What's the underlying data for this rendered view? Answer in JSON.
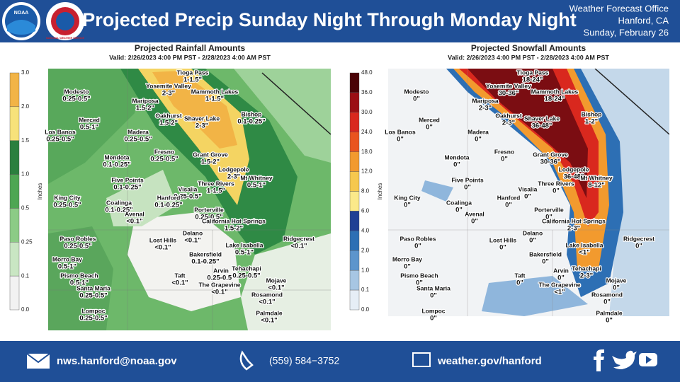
{
  "header": {
    "title": "Projected Precip Sunday Night Through Monday Night",
    "office": [
      "Weather Forecast Office",
      "Hanford, CA",
      "Sunday, February 26"
    ],
    "logos": [
      "NOAA",
      "NATIONAL WEATHER SERVICE"
    ]
  },
  "maps": [
    {
      "title": "Projected Rainfall Amounts",
      "valid": "Valid: 2/26/2023 4:00 PM PST - 2/28/2023 4:00 AM PST",
      "unit": "Inches",
      "scale": [
        "3.0",
        "2.0",
        "1.5",
        "1.0",
        "0.5",
        "0.25",
        "0.1",
        "0.0"
      ],
      "places": [
        {
          "name": "Tioga Pass",
          "amount": "1-1.5\""
        },
        {
          "name": "Yosemite Valley",
          "amount": "2-3\""
        },
        {
          "name": "Mammoth Lakes",
          "amount": "1-1.5\""
        },
        {
          "name": "Modesto",
          "amount": "0.25-0.5\""
        },
        {
          "name": "Mariposa",
          "amount": "1.5-2\""
        },
        {
          "name": "Bishop",
          "amount": "0.1-0.25\""
        },
        {
          "name": "Oakhurst",
          "amount": "1.5-2\""
        },
        {
          "name": "Shaver Lake",
          "amount": "2-3\""
        },
        {
          "name": "Merced",
          "amount": "0.5-1\""
        },
        {
          "name": "Los Banos",
          "amount": "0.25-0.5\""
        },
        {
          "name": "Madera",
          "amount": "0.25-0.5\""
        },
        {
          "name": "Grant Grove",
          "amount": "1.5-2\""
        },
        {
          "name": "Fresno",
          "amount": "0.25-0.5\""
        },
        {
          "name": "Mendota",
          "amount": "0.1-0.25\""
        },
        {
          "name": "Lodgepole",
          "amount": "2-3\""
        },
        {
          "name": "Mt Whitney",
          "amount": "0.5-1\""
        },
        {
          "name": "Five Points",
          "amount": "0.1-0.25\""
        },
        {
          "name": "Three Rivers",
          "amount": "1-1.5\""
        },
        {
          "name": "Visalia",
          "amount": "0.25-0.5\""
        },
        {
          "name": "Hanford",
          "amount": "0.1-0.25\""
        },
        {
          "name": "King City",
          "amount": "0.25-0.5\""
        },
        {
          "name": "Coalinga",
          "amount": "0.1-0.25\""
        },
        {
          "name": "Avenal",
          "amount": "<0.1\""
        },
        {
          "name": "Porterville",
          "amount": "0.25-0.5\""
        },
        {
          "name": "California Hot Springs",
          "amount": "1.5-2\""
        },
        {
          "name": "Lost Hills",
          "amount": "<0.1\""
        },
        {
          "name": "Delano",
          "amount": "<0.1\""
        },
        {
          "name": "Paso Robles",
          "amount": "0.25-0.5\""
        },
        {
          "name": "Lake Isabella",
          "amount": "0.5-1\""
        },
        {
          "name": "Ridgecrest",
          "amount": "<0.1\""
        },
        {
          "name": "Bakersfield",
          "amount": "0.1-0.25\""
        },
        {
          "name": "Morro Bay",
          "amount": "0.5-1\""
        },
        {
          "name": "Arvin",
          "amount": "0.25-0.5\""
        },
        {
          "name": "Tehachapi",
          "amount": "0.25-0.5\""
        },
        {
          "name": "Pismo Beach",
          "amount": "0.5-1\""
        },
        {
          "name": "Taft",
          "amount": "<0.1\""
        },
        {
          "name": "Mojave",
          "amount": "<0.1\""
        },
        {
          "name": "Santa Maria",
          "amount": "0.25-0.5\""
        },
        {
          "name": "The Grapevine",
          "amount": "<0.1\""
        },
        {
          "name": "Rosamond",
          "amount": "<0.1\""
        },
        {
          "name": "Lompoc",
          "amount": "0.25-0.5\""
        },
        {
          "name": "Palmdale",
          "amount": "<0.1\""
        }
      ]
    },
    {
      "title": "Projected Snowfall Amounts",
      "valid": "Valid: 2/26/2023 4:00 PM PST - 2/28/2023 4:00 AM PST",
      "unit": "Inches",
      "scale": [
        "48.0",
        "36.0",
        "30.0",
        "24.0",
        "18.0",
        "12.0",
        "8.0",
        "6.0",
        "4.0",
        "2.0",
        "1.0",
        "0.1",
        "0.0"
      ],
      "places": [
        {
          "name": "Tioga Pass",
          "amount": "18-24\""
        },
        {
          "name": "Yosemite Valley",
          "amount": "30-36\""
        },
        {
          "name": "Mammoth Lakes",
          "amount": "18-24\""
        },
        {
          "name": "Modesto",
          "amount": "0\""
        },
        {
          "name": "Mariposa",
          "amount": "2-3\""
        },
        {
          "name": "Bishop",
          "amount": "1-2\""
        },
        {
          "name": "Oakhurst",
          "amount": "2-3\""
        },
        {
          "name": "Shaver Lake",
          "amount": "36-48\""
        },
        {
          "name": "Merced",
          "amount": "0\""
        },
        {
          "name": "Los Banos",
          "amount": "0\""
        },
        {
          "name": "Madera",
          "amount": "0\""
        },
        {
          "name": "Grant Grove",
          "amount": "30-36\""
        },
        {
          "name": "Fresno",
          "amount": "0\""
        },
        {
          "name": "Mendota",
          "amount": "0\""
        },
        {
          "name": "Lodgepole",
          "amount": "36-48\""
        },
        {
          "name": "Mt Whitney",
          "amount": "8-12\""
        },
        {
          "name": "Five Points",
          "amount": "0\""
        },
        {
          "name": "Three Rivers",
          "amount": "0\""
        },
        {
          "name": "Visalia",
          "amount": "0\""
        },
        {
          "name": "Hanford",
          "amount": "0\""
        },
        {
          "name": "King City",
          "amount": "0\""
        },
        {
          "name": "Coalinga",
          "amount": "0\""
        },
        {
          "name": "Avenal",
          "amount": "0\""
        },
        {
          "name": "Porterville",
          "amount": "0\""
        },
        {
          "name": "California Hot Springs",
          "amount": "2-3\""
        },
        {
          "name": "Lost Hills",
          "amount": "0\""
        },
        {
          "name": "Delano",
          "amount": "0\""
        },
        {
          "name": "Paso Robles",
          "amount": "0\""
        },
        {
          "name": "Lake Isabella",
          "amount": "<1\""
        },
        {
          "name": "Ridgecrest",
          "amount": "0\""
        },
        {
          "name": "Bakersfield",
          "amount": "0\""
        },
        {
          "name": "Morro Bay",
          "amount": "0\""
        },
        {
          "name": "Arvin",
          "amount": "0\""
        },
        {
          "name": "Tehachapi",
          "amount": "2-3\""
        },
        {
          "name": "Pismo Beach",
          "amount": "0\""
        },
        {
          "name": "Taft",
          "amount": "0\""
        },
        {
          "name": "Mojave",
          "amount": "0\""
        },
        {
          "name": "Santa Maria",
          "amount": "0\""
        },
        {
          "name": "The Grapevine",
          "amount": "<1\""
        },
        {
          "name": "Rosamond",
          "amount": "0\""
        },
        {
          "name": "Lompoc",
          "amount": "0\""
        },
        {
          "name": "Palmdale",
          "amount": "0\""
        }
      ]
    }
  ],
  "footer": {
    "email": "nws.hanford@noaa.gov",
    "phone": "(559)  584−3752",
    "website": "weather.gov/hanford"
  }
}
